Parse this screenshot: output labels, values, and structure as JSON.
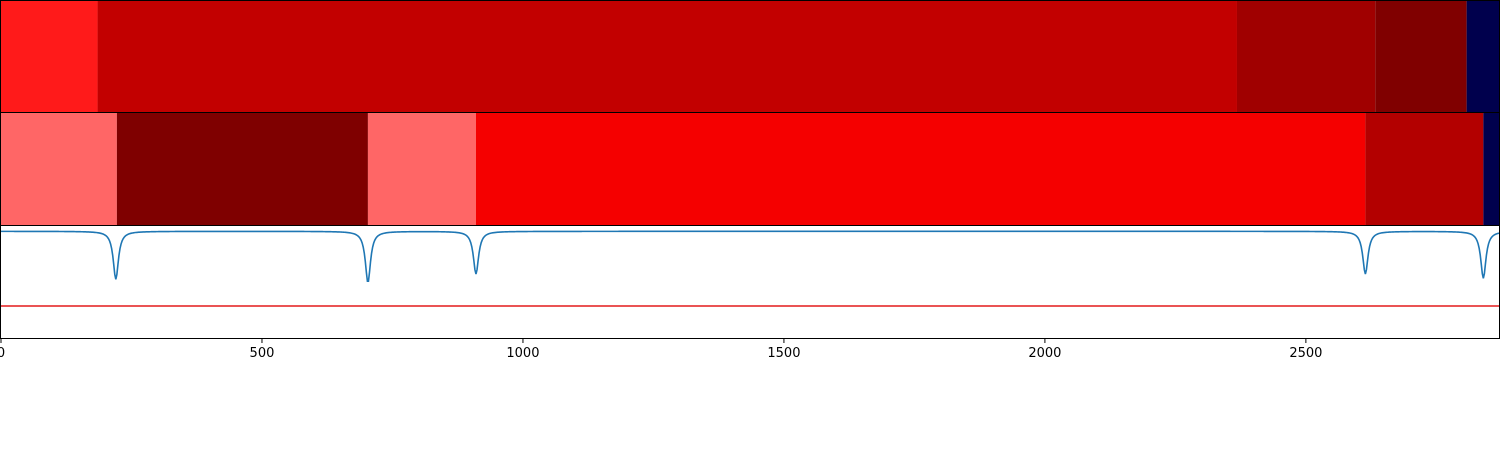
{
  "chart_data": {
    "type": "heatmap",
    "xlim": [
      0,
      2870
    ],
    "x_ticks": [
      0,
      500,
      1000,
      1500,
      2000,
      2500
    ],
    "x_tick_labels": [
      "0",
      "500",
      "1000",
      "1500",
      "2000",
      "2500"
    ],
    "segment_rows": [
      {
        "segments": [
          {
            "start": 0,
            "end": 185,
            "color": "#ff1a1a"
          },
          {
            "start": 185,
            "end": 2368,
            "color": "#c20000"
          },
          {
            "start": 2368,
            "end": 2633,
            "color": "#a00000"
          },
          {
            "start": 2633,
            "end": 2808,
            "color": "#800000"
          },
          {
            "start": 2808,
            "end": 2870,
            "color": "#00004d"
          }
        ]
      },
      {
        "segments": [
          {
            "start": 0,
            "end": 222,
            "color": "#ff6666"
          },
          {
            "start": 222,
            "end": 703,
            "color": "#7f0000"
          },
          {
            "start": 703,
            "end": 910,
            "color": "#ff6666"
          },
          {
            "start": 910,
            "end": 2614,
            "color": "#f50000"
          },
          {
            "start": 2614,
            "end": 2840,
            "color": "#b30000"
          },
          {
            "start": 2840,
            "end": 2870,
            "color": "#00004d"
          }
        ]
      }
    ],
    "line_panel": {
      "ylim": [
        -1.0,
        0.05
      ],
      "threshold": -0.7,
      "threshold_color": "#e41a1c",
      "line_color": "#1f77b4",
      "baseline": 0.0,
      "dips": [
        {
          "x": 220,
          "depth": -0.45
        },
        {
          "x": 703,
          "depth": -0.48
        },
        {
          "x": 910,
          "depth": -0.4
        },
        {
          "x": 2614,
          "depth": -0.4
        },
        {
          "x": 2840,
          "depth": -0.44
        }
      ]
    }
  }
}
